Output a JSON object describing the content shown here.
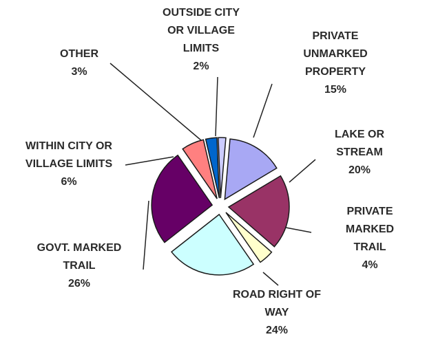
{
  "chart_data": {
    "type": "pie",
    "categories": [
      "PRIVATE\nUNMARKED\nPROPERTY",
      "LAKE OR\nSTREAM",
      "PRIVATE\nMARKED TRAIL",
      "ROAD RIGHT OF\nWAY",
      "GOVT. MARKED\nTRAIL",
      "WITHIN CITY OR\nVILLAGE LIMITS",
      "OTHER",
      "OUTSIDE CITY\nOR VILLAGE\nLIMITS"
    ],
    "values": [
      15,
      20,
      4,
      24,
      26,
      6,
      3,
      2
    ],
    "value_labels": [
      "15%",
      "20%",
      "4%",
      "24%",
      "26%",
      "6%",
      "3%",
      "2%"
    ],
    "colors": [
      "#a8a8f4",
      "#993366",
      "#ffffcc",
      "#ccffff",
      "#660066",
      "#ff8080",
      "#0066cc",
      "#ccccff"
    ]
  }
}
